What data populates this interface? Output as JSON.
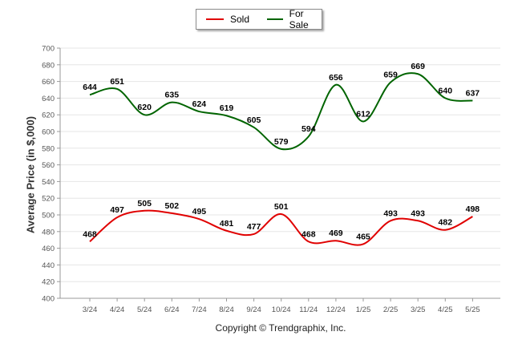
{
  "chart_data": {
    "type": "line",
    "categories": [
      "3/24",
      "4/24",
      "5/24",
      "6/24",
      "7/24",
      "8/24",
      "9/24",
      "10/24",
      "11/24",
      "12/24",
      "1/25",
      "2/25",
      "3/25",
      "4/25",
      "5/25"
    ],
    "series": [
      {
        "name": "Sold",
        "color": "#e00000",
        "values": [
          468,
          497,
          505,
          502,
          495,
          481,
          477,
          501,
          468,
          469,
          465,
          493,
          493,
          482,
          498
        ]
      },
      {
        "name": "For Sale",
        "color": "#006400",
        "values": [
          644,
          651,
          620,
          635,
          624,
          619,
          605,
          579,
          594,
          656,
          612,
          659,
          669,
          640,
          637
        ]
      }
    ],
    "ylabel": "Average Price (in $,000)",
    "ylim": [
      400,
      700
    ],
    "yticks": [
      400,
      420,
      440,
      460,
      480,
      500,
      520,
      540,
      560,
      580,
      600,
      620,
      640,
      660,
      680,
      700
    ],
    "grid": true,
    "legend_position": "top-center"
  },
  "footer": {
    "copyright": "Copyright © Trendgraphix, Inc."
  }
}
